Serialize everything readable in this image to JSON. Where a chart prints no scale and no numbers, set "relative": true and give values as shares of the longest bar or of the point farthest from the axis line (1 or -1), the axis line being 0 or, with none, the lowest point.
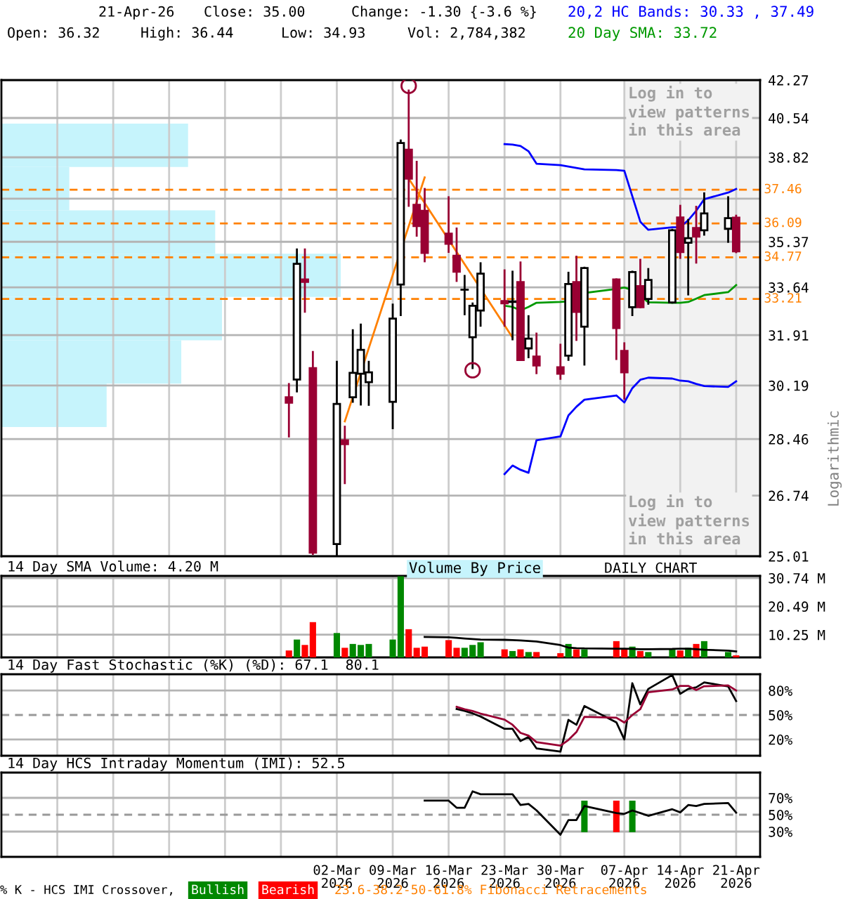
{
  "chart_data": [
    {
      "type": "candlestick",
      "log": true,
      "ylim": [
        25.01,
        42.27
      ],
      "yticks": [
        42.27,
        40.54,
        38.82,
        {
          "value": 37.09,
          "label": null
        },
        35.37,
        33.64,
        31.91,
        30.19,
        28.46,
        26.74,
        25.01
      ],
      "xlim": [
        "2026-01-19",
        "2026-04-24"
      ],
      "xticks": [
        {
          "value": "2026-01-26",
          "label": null
        },
        {
          "value": "2026-02-02",
          "label": null
        },
        {
          "value": "2026-02-09",
          "label": null
        },
        {
          "value": "2026-02-16",
          "label": null
        },
        {
          "value": "2026-02-23",
          "label": null
        },
        {
          "value": "2026-03-02",
          "label": null
        },
        {
          "value": "2026-03-09",
          "label": null
        },
        {
          "value": "2026-03-16",
          "label": null
        },
        {
          "value": "2026-03-23",
          "label": null
        },
        {
          "value": "2026-03-30",
          "label": null
        },
        {
          "value": "2026-04-07",
          "label": null
        },
        {
          "value": "2026-04-14",
          "label": null
        },
        {
          "value": "2026-04-21",
          "label": null
        }
      ],
      "tick_labels": "y",
      "grid": true,
      "legend": "top right",
      "ylabel": "Logarithmic",
      "x": [
        "2026-02-24",
        "2026-02-25",
        "2026-02-26",
        "2026-02-27",
        "2026-03-02",
        "2026-03-03",
        "2026-03-04",
        "2026-03-05",
        "2026-03-06",
        "2026-03-09",
        "2026-03-10",
        "2026-03-11",
        "2026-03-12",
        "2026-03-13",
        "2026-03-16",
        "2026-03-17",
        "2026-03-18",
        "2026-03-19",
        "2026-03-20",
        "2026-03-23",
        "2026-03-24",
        "2026-03-25",
        "2026-03-26",
        "2026-03-27",
        "2026-03-30",
        "2026-03-31",
        "2026-04-01",
        "2026-04-02",
        "2026-04-06",
        "2026-04-07",
        "2026-04-08",
        "2026-04-09",
        "2026-04-10",
        "2026-04-13",
        "2026-04-14",
        "2026-04-15",
        "2026-04-16",
        "2026-04-17",
        "2026-04-20",
        "2026-04-21"
      ],
      "ohlc": [
        [
          29.8,
          30.27,
          28.51,
          29.62
        ],
        [
          30.39,
          35.11,
          29.96,
          34.52
        ],
        [
          33.93,
          35.11,
          32.71,
          33.84
        ],
        [
          30.77,
          31.36,
          25.05,
          25.11
        ],
        [
          25.35,
          31.02,
          25.01,
          29.58
        ],
        [
          28.42,
          28.88,
          27.08,
          28.3
        ],
        [
          29.8,
          32.12,
          29.62,
          30.61
        ],
        [
          30.58,
          32.32,
          29.53,
          31.4
        ],
        [
          30.3,
          31.02,
          29.52,
          30.63
        ],
        [
          29.65,
          33.04,
          28.77,
          32.5
        ],
        [
          33.74,
          39.59,
          32.59,
          39.44
        ],
        [
          39.15,
          41.83,
          36.76,
          37.92
        ],
        [
          36.84,
          38.67,
          35.57,
          35.99
        ],
        [
          36.6,
          37.53,
          34.58,
          34.94
        ],
        [
          35.69,
          37.19,
          34.94,
          35.29
        ],
        [
          34.83,
          35.93,
          33.84,
          34.22
        ],
        [
          33.55,
          34.1,
          32.62,
          33.55
        ],
        [
          31.84,
          33.08,
          30.74,
          32.96
        ],
        [
          32.79,
          34.58,
          32.21,
          34.15
        ],
        [
          33.13,
          34.31,
          32.21,
          33.05
        ],
        [
          33.1,
          34.26,
          31.73,
          33.12
        ],
        [
          33.83,
          34.61,
          31.02,
          31.05
        ],
        [
          31.45,
          32.62,
          31.11,
          31.79
        ],
        [
          31.17,
          32.0,
          30.57,
          30.86
        ],
        [
          30.8,
          31.61,
          30.38,
          30.58
        ],
        [
          31.2,
          34.22,
          31.02,
          33.76
        ],
        [
          33.83,
          34.83,
          31.71,
          32.74
        ],
        [
          32.21,
          34.41,
          30.86,
          34.36
        ],
        [
          33.93,
          33.97,
          31.05,
          32.16
        ],
        [
          31.36,
          31.66,
          29.72,
          30.63
        ],
        [
          32.91,
          34.26,
          32.59,
          34.21
        ],
        [
          33.68,
          34.71,
          32.87,
          32.91
        ],
        [
          33.21,
          34.36,
          33.0,
          33.91
        ],
        [
          33.08,
          35.88,
          33.04,
          35.82
        ],
        [
          36.33,
          36.84,
          34.71,
          34.97
        ],
        [
          35.33,
          36.27,
          33.34,
          35.51
        ],
        [
          35.91,
          36.8,
          34.53,
          35.57
        ],
        [
          35.82,
          37.35,
          35.61,
          36.49
        ],
        [
          35.88,
          37.19,
          35.33,
          36.3
        ],
        [
          36.32,
          36.44,
          34.93,
          35.0
        ]
      ],
      "colors": [
        "#990033",
        "#ffffff",
        "#990033",
        "#990033",
        "#ffffff",
        "#990033",
        "#ffffff",
        "#ffffff",
        "#ffffff",
        "#ffffff",
        "#ffffff",
        "#990033",
        "#990033",
        "#990033",
        "#990033",
        "#990033",
        "#000000",
        "#ffffff",
        "#ffffff",
        "#990033",
        "#ffffff",
        "#990033",
        "#ffffff",
        "#990033",
        "#990033",
        "#ffffff",
        "#990033",
        "#ffffff",
        "#990033",
        "#990033",
        "#ffffff",
        "#990033",
        "#ffffff",
        "#ffffff",
        "#990033",
        "#ffffff",
        "#990033",
        "#ffffff",
        "#ffffff",
        "#990033"
      ],
      "series": [
        {
          "type": "line",
          "name": "20,2 HC Bands: 30.33 , 37.49",
          "color": "#0000ff",
          "x": [
            "2026-03-23",
            "2026-03-24",
            "2026-03-25",
            "2026-03-26",
            "2026-03-27",
            "2026-03-30",
            "2026-03-31",
            "2026-04-01",
            "2026-04-02",
            "2026-04-06",
            "2026-04-07",
            "2026-04-08",
            "2026-04-09",
            "2026-04-10",
            "2026-04-13",
            "2026-04-14",
            "2026-04-15",
            "2026-04-16",
            "2026-04-17",
            "2026-04-20",
            "2026-04-21"
          ],
          "values": [
            39.39,
            39.37,
            39.31,
            39.08,
            38.55,
            38.49,
            38.43,
            38.37,
            38.31,
            38.28,
            38.25,
            37.19,
            36.16,
            35.84,
            35.94,
            35.94,
            36.22,
            36.6,
            37.07,
            37.34,
            37.49
          ]
        },
        {
          "type": "line",
          "color": "#0000ff",
          "x": [
            "2026-03-23",
            "2026-03-24",
            "2026-03-25",
            "2026-03-26",
            "2026-03-27",
            "2026-03-30",
            "2026-03-31",
            "2026-04-01",
            "2026-04-02",
            "2026-04-06",
            "2026-04-07",
            "2026-04-08",
            "2026-04-09",
            "2026-04-10",
            "2026-04-13",
            "2026-04-14",
            "2026-04-15",
            "2026-04-16",
            "2026-04-17",
            "2026-04-20",
            "2026-04-21"
          ],
          "values": [
            27.38,
            27.64,
            27.51,
            27.42,
            28.42,
            28.54,
            29.21,
            29.49,
            29.72,
            29.86,
            29.63,
            30.1,
            30.38,
            30.45,
            30.42,
            30.35,
            30.33,
            30.24,
            30.17,
            30.14,
            30.33
          ]
        },
        {
          "type": "line",
          "name": "20 Day SMA: 33.72",
          "color": "#009900",
          "x": [
            "2026-03-23",
            "2026-03-24",
            "2026-03-25",
            "2026-03-26",
            "2026-03-27",
            "2026-03-30",
            "2026-03-31",
            "2026-04-01",
            "2026-04-02",
            "2026-04-06",
            "2026-04-07",
            "2026-04-08",
            "2026-04-09",
            "2026-04-10",
            "2026-04-13",
            "2026-04-14",
            "2026-04-15",
            "2026-04-16",
            "2026-04-17",
            "2026-04-20",
            "2026-04-21"
          ],
          "values": [
            32.96,
            32.92,
            32.79,
            32.92,
            33.07,
            33.1,
            33.12,
            null,
            33.43,
            33.58,
            33.63,
            33.54,
            33.33,
            33.09,
            33.07,
            33.07,
            33.1,
            33.22,
            33.35,
            33.46,
            33.72
          ]
        },
        {
          "type": "line",
          "color": "#ff8000",
          "x": [
            "2026-03-03",
            "2026-03-13"
          ],
          "values": [
            29.02,
            37.97
          ]
        },
        {
          "type": "line",
          "color": "#ff8000",
          "x": [
            "2026-03-11",
            "2026-03-24"
          ],
          "values": [
            37.92,
            31.83
          ]
        },
        {
          "type": "scatter",
          "marker": "circle",
          "color": "#990033",
          "x": [
            "2026-03-11",
            "2026-03-19"
          ],
          "values": [
            42.0,
            30.7
          ]
        }
      ],
      "ref_lines": [
        {
          "axis": "y",
          "value": 37.46,
          "label": "37.46",
          "color": "#ff8000",
          "line_style": "dashed"
        },
        {
          "axis": "y",
          "value": 36.09,
          "label": "36.09",
          "color": "#ff8000",
          "line_style": "dashed"
        },
        {
          "axis": "y",
          "value": 34.77,
          "label": "34.77",
          "color": "#ff8000",
          "line_style": "dashed"
        },
        {
          "axis": "y",
          "value": 33.21,
          "label": "33.21",
          "color": "#ff8000",
          "line_style": "dashed"
        }
      ],
      "bands": [
        {
          "axis": "x",
          "from": "2026-04-07",
          "to": "2026-04-24",
          "color": "#f2f2f2"
        }
      ],
      "annotations": [
        "21-Apr-26",
        "Close: 35.00",
        "Change: -1.30 {-3.6 %}",
        "Open: 36.32",
        "High: 36.44",
        "Low: 34.93",
        "Vol: 2,784,382",
        "Log in to\nview patterns\nin this area",
        "Log in to\nview patterns\nin this area",
        "DAILY CHART",
        "23.6-38.2-50-61.8% Fibonacci Retracements",
        "Volume By Price"
      ]
    },
    {
      "type": "bar",
      "orientation": "horizontal",
      "relative": true,
      "color": "#c6f4fc",
      "categories": [
        null,
        null,
        null,
        null,
        null,
        null,
        null
      ],
      "values": [
        0.55,
        0.2,
        0.63,
        1,
        0.65,
        0.53,
        0.31
      ]
    },
    {
      "type": "bar",
      "title": "14 Day SMA Volume: 4.20 M",
      "tick_labels": "y",
      "grid": true,
      "xlim": [
        "2026-01-19",
        "2026-04-24"
      ],
      "xticks": [
        {
          "value": "2026-01-26",
          "label": null
        },
        {
          "value": "2026-02-02",
          "label": null
        },
        {
          "value": "2026-02-09",
          "label": null
        },
        {
          "value": "2026-02-16",
          "label": null
        },
        {
          "value": "2026-02-23",
          "label": null
        },
        {
          "value": "2026-03-02",
          "label": null
        },
        {
          "value": "2026-03-09",
          "label": null
        },
        {
          "value": "2026-03-16",
          "label": null
        },
        {
          "value": "2026-03-23",
          "label": null
        },
        {
          "value": "2026-03-30",
          "label": null
        },
        {
          "value": "2026-04-07",
          "label": null
        },
        {
          "value": "2026-04-14",
          "label": null
        },
        {
          "value": "2026-04-21",
          "label": null
        }
      ],
      "ylim": [
        2.05,
        31.5
      ],
      "yticks": [
        {
          "value": 30.74,
          "label": "30.74 M"
        },
        {
          "value": 20.49,
          "label": "20.49 M"
        },
        {
          "value": 10.25,
          "label": "10.25 M"
        }
      ],
      "x": [
        "2026-02-24",
        "2026-02-25",
        "2026-02-26",
        "2026-02-27",
        "2026-03-02",
        "2026-03-03",
        "2026-03-04",
        "2026-03-05",
        "2026-03-06",
        "2026-03-09",
        "2026-03-10",
        "2026-03-11",
        "2026-03-12",
        "2026-03-13",
        "2026-03-16",
        "2026-03-17",
        "2026-03-18",
        "2026-03-19",
        "2026-03-20",
        "2026-03-23",
        "2026-03-24",
        "2026-03-25",
        "2026-03-26",
        "2026-03-27",
        "2026-03-30",
        "2026-03-31",
        "2026-04-01",
        "2026-04-02",
        "2026-04-06",
        "2026-04-07",
        "2026-04-08",
        "2026-04-09",
        "2026-04-10",
        "2026-04-13",
        "2026-04-14",
        "2026-04-15",
        "2026-04-16",
        "2026-04-17",
        "2026-04-20",
        "2026-04-21"
      ],
      "series": [
        {
          "type": "bar",
          "values": [
            4.55,
            8.5,
            6.55,
            14.8,
            10.86,
            5.52,
            6.91,
            6.55,
            6.91,
            8.5,
            31.4,
            12.24,
            5.52,
            5.94,
            8.29,
            5.52,
            5.52,
            6.55,
            7.52,
            4.96,
            4.35,
            4.96,
            3.99,
            3.99,
            3.58,
            6.91,
            4.96,
            4.96,
            7.93,
            4.96,
            5.94,
            4.35,
            3.99,
            4.96,
            4.55,
            5.52,
            6.91,
            7.93,
            3.99,
            2.78
          ],
          "colors": [
            "#ff0000",
            "#008800",
            "#ff0000",
            "#ff0000",
            "#008800",
            "#ff0000",
            "#008800",
            "#008800",
            "#008800",
            "#008800",
            "#008800",
            "#ff0000",
            "#ff0000",
            "#ff0000",
            "#ff0000",
            "#ff0000",
            "#008800",
            "#008800",
            "#008800",
            "#ff0000",
            "#008800",
            "#ff0000",
            "#008800",
            "#ff0000",
            "#ff0000",
            "#008800",
            "#ff0000",
            "#008800",
            "#ff0000",
            "#ff0000",
            "#008800",
            "#ff0000",
            "#008800",
            "#008800",
            "#ff0000",
            "#008800",
            "#ff0000",
            "#008800",
            "#008800",
            "#ff0000"
          ]
        },
        {
          "type": "line",
          "color": "#000000",
          "x": [
            "2026-03-13",
            "2026-03-16",
            "2026-03-17",
            "2026-03-18",
            "2026-03-19",
            "2026-03-20",
            "2026-03-23",
            "2026-03-24",
            "2026-03-25",
            "2026-03-26",
            "2026-03-27",
            "2026-03-30",
            "2026-03-31",
            "2026-04-01",
            "2026-04-02",
            "2026-04-06",
            "2026-04-07",
            "2026-04-08",
            "2026-04-09",
            "2026-04-10",
            "2026-04-13",
            "2026-04-14",
            "2026-04-15",
            "2026-04-16",
            "2026-04-17",
            "2026-04-20",
            "2026-04-21"
          ],
          "values": [
            9.47,
            9.3,
            9.1,
            8.9,
            8.7,
            8.5,
            8.4,
            8.3,
            8.2,
            8.0,
            7.8,
            6.5,
            5.6,
            5.4,
            5.3,
            5.2,
            5.2,
            5.1,
            5.0,
            5.0,
            5.1,
            5.2,
            5.2,
            5.0,
            4.8,
            4.5,
            4.2
          ]
        }
      ]
    },
    {
      "type": "line",
      "title": "14 Day Fast Stochastic (%K) (%D): 67.1  80.1",
      "tick_labels": "y",
      "grid": true,
      "xlim": [
        "2026-01-19",
        "2026-04-24"
      ],
      "xticks": [
        {
          "value": "2026-01-26",
          "label": null
        },
        {
          "value": "2026-02-02",
          "label": null
        },
        {
          "value": "2026-02-09",
          "label": null
        },
        {
          "value": "2026-02-16",
          "label": null
        },
        {
          "value": "2026-02-23",
          "label": null
        },
        {
          "value": "2026-03-02",
          "label": null
        },
        {
          "value": "2026-03-09",
          "label": null
        },
        {
          "value": "2026-03-16",
          "label": null
        },
        {
          "value": "2026-03-23",
          "label": null
        },
        {
          "value": "2026-03-30",
          "label": null
        },
        {
          "value": "2026-04-07",
          "label": null
        },
        {
          "value": "2026-04-14",
          "label": null
        },
        {
          "value": "2026-04-21",
          "label": null
        }
      ],
      "ylim": [
        0,
        100
      ],
      "yticks": [
        {
          "value": 80,
          "label": "80%"
        },
        {
          "value": 50,
          "label": "50%"
        },
        {
          "value": 20,
          "label": "20%"
        }
      ],
      "ref_lines": [
        {
          "axis": "y",
          "value": 50,
          "color": "#999999",
          "line_style": "dashed"
        }
      ],
      "x": [
        "2026-03-17",
        "2026-03-18",
        "2026-03-19",
        "2026-03-20",
        "2026-03-23",
        "2026-03-24",
        "2026-03-25",
        "2026-03-26",
        "2026-03-27",
        "2026-03-30",
        "2026-03-31",
        "2026-04-01",
        "2026-04-02",
        "2026-04-06",
        "2026-04-07",
        "2026-04-08",
        "2026-04-09",
        "2026-04-10",
        "2026-04-13",
        "2026-04-14",
        "2026-04-15",
        "2026-04-16",
        "2026-04-17",
        "2026-04-20",
        "2026-04-21"
      ],
      "series": [
        {
          "color": "#000000",
          "values": [
            57.4,
            55,
            52,
            48,
            33,
            33,
            18,
            23,
            9,
            5,
            44,
            38,
            61,
            41,
            20,
            89,
            63,
            82,
            99,
            76,
            82,
            84,
            90,
            85,
            67.1
          ]
        },
        {
          "color": "#990033",
          "values": [
            60,
            57,
            54.8,
            51.7,
            44.3,
            38,
            28,
            24.7,
            16.7,
            12.3,
            19.3,
            29,
            47.7,
            46.7,
            40.7,
            50,
            57.3,
            78,
            81.3,
            85.7,
            85.7,
            80.7,
            85.3,
            86.3,
            80.1
          ]
        }
      ]
    },
    {
      "type": "line",
      "title": "14 Day HCS Intraday Momentum (IMI): 52.5",
      "grid": true,
      "legend": "bottom",
      "legend_title": "% K - HCS IMI Crossover,",
      "xlim": [
        "2026-01-19",
        "2026-04-24"
      ],
      "xticks": [
        {
          "value": "2026-01-26",
          "label": null
        },
        {
          "value": "2026-02-02",
          "label": null
        },
        {
          "value": "2026-02-09",
          "label": null
        },
        {
          "value": "2026-02-16",
          "label": null
        },
        {
          "value": "2026-02-23",
          "label": null
        },
        {
          "value": "2026-03-02",
          "label": "02-Mar\n2026"
        },
        {
          "value": "2026-03-09",
          "label": "09-Mar\n2026"
        },
        {
          "value": "2026-03-16",
          "label": "16-Mar\n2026"
        },
        {
          "value": "2026-03-23",
          "label": "23-Mar\n2026"
        },
        {
          "value": "2026-03-30",
          "label": "30-Mar\n2026"
        },
        {
          "value": "2026-04-07",
          "label": "07-Apr\n2026"
        },
        {
          "value": "2026-04-14",
          "label": "14-Apr\n2026"
        },
        {
          "value": "2026-04-21",
          "label": "21-Apr\n2026"
        }
      ],
      "ylim": [
        0,
        100
      ],
      "yticks": [
        {
          "value": 70,
          "label": "70%"
        },
        {
          "value": 50,
          "label": "50%"
        },
        {
          "value": 30,
          "label": "30%"
        }
      ],
      "ref_lines": [
        {
          "axis": "y",
          "value": 50,
          "color": "#999999",
          "line_style": "dashed"
        }
      ],
      "x": [
        "2026-03-13",
        "2026-03-16",
        "2026-03-17",
        "2026-03-18",
        "2026-03-19",
        "2026-03-20",
        "2026-03-23",
        "2026-03-24",
        "2026-03-25",
        "2026-03-26",
        "2026-03-27",
        "2026-03-30",
        "2026-03-31",
        "2026-04-01",
        "2026-04-02",
        "2026-04-06",
        "2026-04-07",
        "2026-04-08",
        "2026-04-09",
        "2026-04-10",
        "2026-04-13",
        "2026-04-14",
        "2026-04-15",
        "2026-04-16",
        "2026-04-17",
        "2026-04-20",
        "2026-04-21"
      ],
      "series": [
        {
          "type": "line",
          "color": "#000000",
          "values": [
            66.7,
            66.7,
            58.3,
            58.3,
            77.7,
            74.3,
            74.3,
            74.3,
            61.5,
            62.8,
            55.2,
            26.3,
            43.7,
            43.7,
            60.3,
            52,
            51,
            55,
            52,
            48.7,
            56.5,
            52.8,
            61.5,
            60.3,
            62.8,
            63.8,
            52.5
          ]
        },
        {
          "type": "bar",
          "name": "Bullish",
          "color": "#008800",
          "x": [
            "2026-04-02",
            "2026-04-08"
          ],
          "base": [
            29.3,
            29.3
          ],
          "values": [
            37.4,
            37.4
          ]
        },
        {
          "type": "bar",
          "name": "Bearish",
          "color": "#ff0000",
          "x": [
            "2026-04-06"
          ],
          "base": [
            29.3
          ],
          "values": [
            37.4
          ]
        }
      ]
    }
  ]
}
